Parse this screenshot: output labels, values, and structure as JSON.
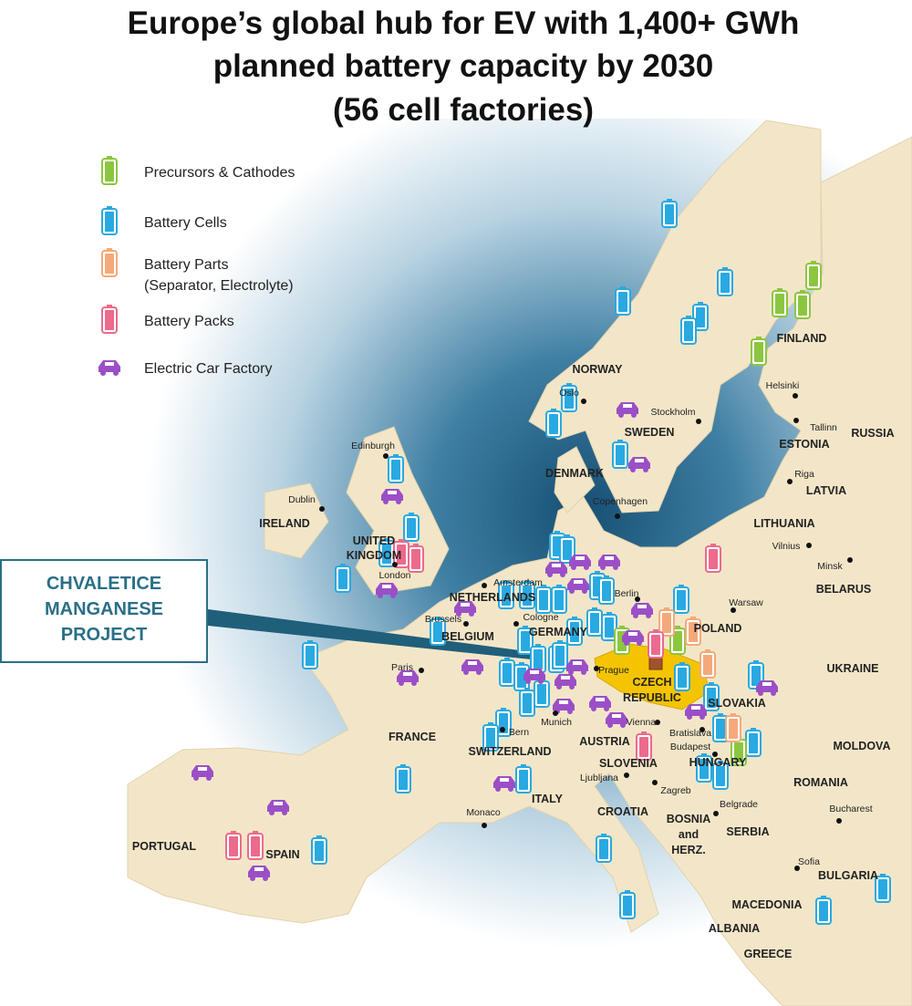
{
  "title": [
    "Europe’s global hub for EV with 1,400+ GWh",
    "planned battery capacity by 2030",
    "(56 cell factories)"
  ],
  "legend": [
    {
      "label": "Precursors & Cathodes",
      "color": "#8cc63f"
    },
    {
      "label": "Battery Cells",
      "color": "#29a9e1"
    },
    {
      "label": "Battery Parts",
      "sublabel": "(Separator, Electrolyte)",
      "color": "#f4a97a"
    },
    {
      "label": "Battery Packs",
      "color": "#ec6a8c"
    },
    {
      "label": "Electric Car Factory",
      "color": "#9b4fc7"
    }
  ],
  "callout": [
    "CHVALETICE",
    "MANGANESE",
    "PROJECT"
  ],
  "countries": [
    "NORWAY",
    "SWEDEN",
    "FINLAND",
    "RUSSIA",
    "ESTONIA",
    "LATVIA",
    "LITHUANIA",
    "BELARUS",
    "UKRAINE",
    "MOLDOVA",
    "ROMANIA",
    "BULGARIA",
    "MACEDONIA",
    "ALBANIA",
    "GREECE",
    "SERBIA",
    "BOSNIA",
    "and",
    "HERZ.",
    "CROATIA",
    "SLOVENIA",
    "HUNGARY",
    "SLOVAKIA",
    "CZECH",
    "REPUBLIC",
    "POLAND",
    "GERMANY",
    "AUSTRIA",
    "SWITZERLAND",
    "ITALY",
    "FRANCE",
    "SPAIN",
    "PORTUGAL",
    "BELGIUM",
    "NETHERLANDS",
    "DENMARK",
    "UNITED",
    "KINGDOM",
    "IRELAND"
  ],
  "cities": [
    "Oslo",
    "Stockholm",
    "Helsinki",
    "Tallinn",
    "Riga",
    "Vilnius",
    "Minsk",
    "Warsaw",
    "Copenhagen",
    "Edinburgh",
    "Dublin",
    "London",
    "Amsterdam",
    "Berlin",
    "Brussels",
    "Cologne",
    "Paris",
    "Prague",
    "Munich",
    "Vienna",
    "Bratislava",
    "Budapest",
    "Bern",
    "Zagreb",
    "Ljubljana",
    "Belgrade",
    "Bucharest",
    "Sofia",
    "Monaco"
  ]
}
